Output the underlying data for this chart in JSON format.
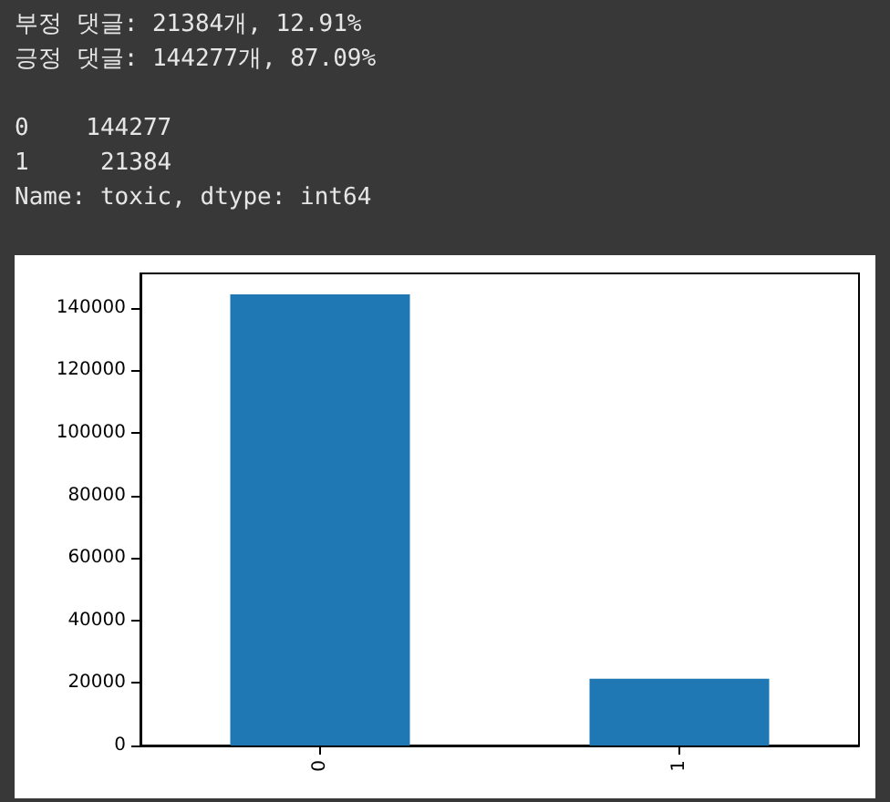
{
  "chart_data": {
    "type": "bar",
    "categories": [
      "0",
      "1"
    ],
    "values": [
      144277,
      21384
    ],
    "color": "#1f77b4",
    "ylim": [
      0,
      151000
    ],
    "yticks": [
      0,
      20000,
      40000,
      60000,
      80000,
      100000,
      120000,
      140000
    ],
    "grid": false,
    "annotations": [
      "부정 댓글: 21384개, 12.91%\n긍정 댓글: 144277개, 87.09%",
      "0    144277\n1     21384\nName: toxic, dtype: int64"
    ]
  }
}
